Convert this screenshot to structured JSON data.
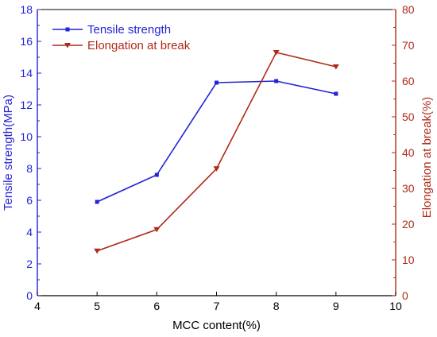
{
  "chart_data": {
    "type": "line",
    "title": "",
    "xlabel": "MCC content(%)",
    "ylabel_left": "Tensile strength(MPa)",
    "ylabel_right": "Elongation at break(%)",
    "xlim": [
      4,
      10
    ],
    "ylim_left": [
      0,
      18
    ],
    "ylim_right": [
      0,
      80
    ],
    "x_ticks": [
      4,
      5,
      6,
      7,
      8,
      9,
      10
    ],
    "y_left_ticks": [
      0,
      2,
      4,
      6,
      8,
      10,
      12,
      14,
      16,
      18
    ],
    "y_right_ticks": [
      0,
      10,
      20,
      30,
      40,
      50,
      60,
      70,
      80
    ],
    "grid": false,
    "legend_position": "top-left",
    "series": [
      {
        "name": "Tensile strength",
        "axis": "left",
        "marker": "square",
        "color": "#2323d6",
        "x": [
          5,
          6,
          7,
          8,
          9
        ],
        "values": [
          5.9,
          7.6,
          13.4,
          13.5,
          12.7
        ]
      },
      {
        "name": "Elongation at break",
        "axis": "right",
        "marker": "triangle-down",
        "color": "#b02a1a",
        "x": [
          5,
          6,
          7,
          8,
          9
        ],
        "values": [
          12.5,
          18.5,
          35.5,
          68,
          64
        ]
      }
    ]
  },
  "colors": {
    "left_axis": "#2323d6",
    "right_axis": "#b02a1a",
    "frame": "#000000"
  }
}
